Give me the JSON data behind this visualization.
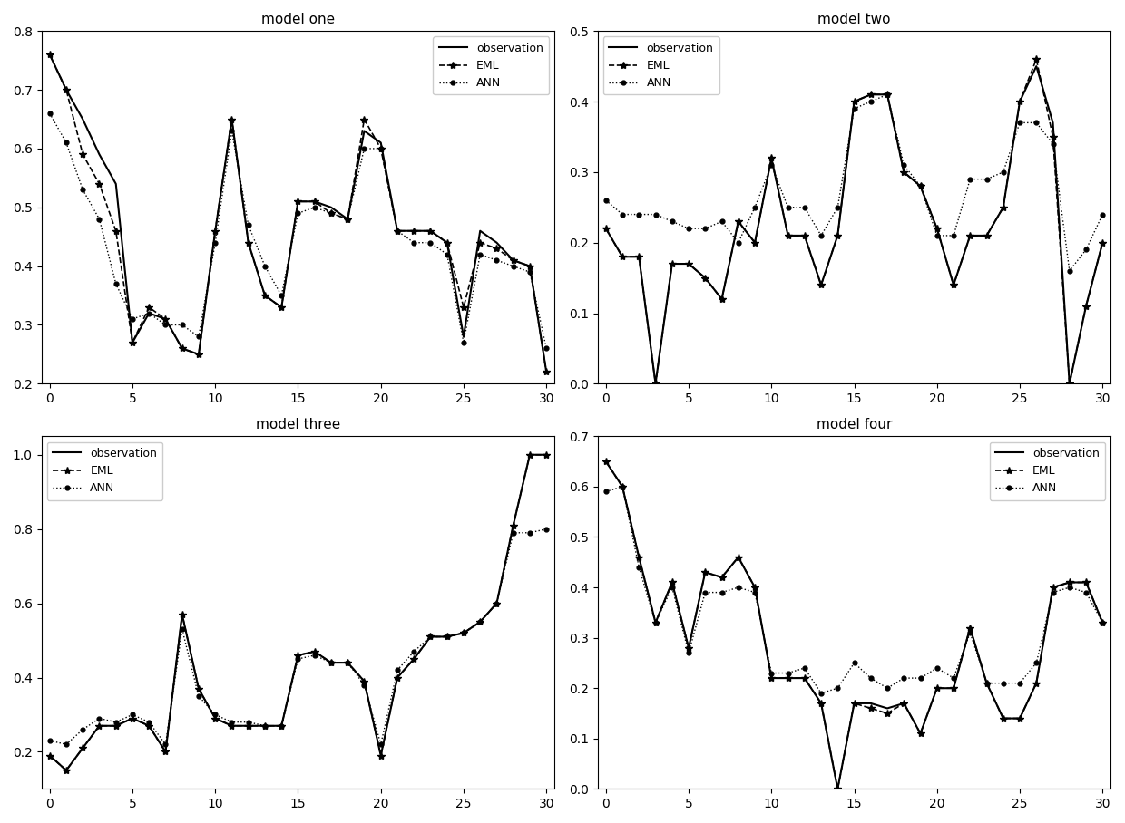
{
  "model_one": {
    "title": "model one",
    "obs": [
      0.76,
      0.7,
      0.65,
      0.59,
      0.54,
      0.27,
      0.32,
      0.31,
      0.26,
      0.25,
      0.46,
      0.65,
      0.44,
      0.35,
      0.33,
      0.51,
      0.51,
      0.5,
      0.48,
      0.63,
      0.61,
      0.46,
      0.46,
      0.46,
      0.44,
      0.28,
      0.46,
      0.44,
      0.41,
      0.4,
      0.22
    ],
    "eml": [
      0.76,
      0.7,
      0.59,
      0.54,
      0.46,
      0.27,
      0.33,
      0.31,
      0.26,
      0.25,
      0.46,
      0.65,
      0.44,
      0.35,
      0.33,
      0.51,
      0.51,
      0.49,
      0.48,
      0.65,
      0.6,
      0.46,
      0.46,
      0.46,
      0.44,
      0.33,
      0.44,
      0.43,
      0.41,
      0.4,
      0.22
    ],
    "ann": [
      0.66,
      0.61,
      0.53,
      0.48,
      0.37,
      0.31,
      0.32,
      0.3,
      0.3,
      0.28,
      0.44,
      0.63,
      0.47,
      0.4,
      0.35,
      0.49,
      0.5,
      0.49,
      0.48,
      0.6,
      0.6,
      0.46,
      0.44,
      0.44,
      0.42,
      0.27,
      0.42,
      0.41,
      0.4,
      0.39,
      0.26
    ],
    "ylim": [
      0.2,
      0.8
    ],
    "legend_loc": "upper right"
  },
  "model_two": {
    "title": "model two",
    "obs": [
      0.22,
      0.18,
      0.18,
      0.0,
      0.17,
      0.17,
      0.15,
      0.12,
      0.23,
      0.2,
      0.32,
      0.21,
      0.21,
      0.14,
      0.21,
      0.4,
      0.41,
      0.41,
      0.3,
      0.28,
      0.22,
      0.14,
      0.21,
      0.21,
      0.25,
      0.4,
      0.45,
      0.37,
      0.0,
      0.11,
      0.2
    ],
    "eml": [
      0.22,
      0.18,
      0.18,
      0.0,
      0.17,
      0.17,
      0.15,
      0.12,
      0.23,
      0.2,
      0.32,
      0.21,
      0.21,
      0.14,
      0.21,
      0.4,
      0.41,
      0.41,
      0.3,
      0.28,
      0.22,
      0.14,
      0.21,
      0.21,
      0.25,
      0.4,
      0.46,
      0.35,
      0.0,
      0.11,
      0.2
    ],
    "ann": [
      0.26,
      0.24,
      0.24,
      0.24,
      0.23,
      0.22,
      0.22,
      0.23,
      0.2,
      0.25,
      0.31,
      0.25,
      0.25,
      0.21,
      0.25,
      0.39,
      0.4,
      0.41,
      0.31,
      0.28,
      0.21,
      0.21,
      0.29,
      0.29,
      0.3,
      0.37,
      0.37,
      0.34,
      0.16,
      0.19,
      0.24
    ],
    "ylim": [
      0.0,
      0.5
    ],
    "legend_loc": "upper left"
  },
  "model_three": {
    "title": "model three",
    "obs": [
      0.19,
      0.15,
      0.21,
      0.27,
      0.27,
      0.29,
      0.27,
      0.2,
      0.57,
      0.37,
      0.29,
      0.27,
      0.27,
      0.27,
      0.27,
      0.46,
      0.47,
      0.44,
      0.44,
      0.39,
      0.19,
      0.4,
      0.45,
      0.51,
      0.51,
      0.52,
      0.55,
      0.6,
      0.81,
      1.0,
      1.0
    ],
    "eml": [
      0.19,
      0.15,
      0.21,
      0.27,
      0.27,
      0.29,
      0.27,
      0.2,
      0.57,
      0.37,
      0.29,
      0.27,
      0.27,
      0.27,
      0.27,
      0.46,
      0.47,
      0.44,
      0.44,
      0.39,
      0.19,
      0.4,
      0.45,
      0.51,
      0.51,
      0.52,
      0.55,
      0.6,
      0.81,
      1.0,
      1.0
    ],
    "ann": [
      0.23,
      0.22,
      0.26,
      0.29,
      0.28,
      0.3,
      0.28,
      0.22,
      0.53,
      0.35,
      0.3,
      0.28,
      0.28,
      0.27,
      0.27,
      0.45,
      0.46,
      0.44,
      0.44,
      0.38,
      0.22,
      0.42,
      0.47,
      0.51,
      0.51,
      0.52,
      0.55,
      0.6,
      0.79,
      0.79,
      0.8
    ],
    "ylim": [
      0.1,
      1.05
    ],
    "legend_loc": "upper left"
  },
  "model_four": {
    "title": "model four",
    "obs": [
      0.65,
      0.6,
      0.46,
      0.33,
      0.41,
      0.28,
      0.43,
      0.42,
      0.46,
      0.4,
      0.22,
      0.22,
      0.22,
      0.17,
      0.0,
      0.17,
      0.17,
      0.16,
      0.17,
      0.11,
      0.2,
      0.2,
      0.32,
      0.21,
      0.14,
      0.14,
      0.21,
      0.4,
      0.41,
      0.41,
      0.33
    ],
    "eml": [
      0.65,
      0.6,
      0.46,
      0.33,
      0.41,
      0.28,
      0.43,
      0.42,
      0.46,
      0.4,
      0.22,
      0.22,
      0.22,
      0.17,
      0.0,
      0.17,
      0.16,
      0.15,
      0.17,
      0.11,
      0.2,
      0.2,
      0.32,
      0.21,
      0.14,
      0.14,
      0.21,
      0.4,
      0.41,
      0.41,
      0.33
    ],
    "ann": [
      0.59,
      0.6,
      0.44,
      0.33,
      0.4,
      0.27,
      0.39,
      0.39,
      0.4,
      0.39,
      0.23,
      0.23,
      0.24,
      0.19,
      0.2,
      0.25,
      0.22,
      0.2,
      0.22,
      0.22,
      0.24,
      0.22,
      0.31,
      0.21,
      0.21,
      0.21,
      0.25,
      0.39,
      0.4,
      0.39,
      0.33
    ],
    "ylim": [
      0.0,
      0.7
    ],
    "legend_loc": "upper right"
  },
  "legend": {
    "obs_label": "observation",
    "eml_label": "EML",
    "ann_label": "ANN"
  }
}
